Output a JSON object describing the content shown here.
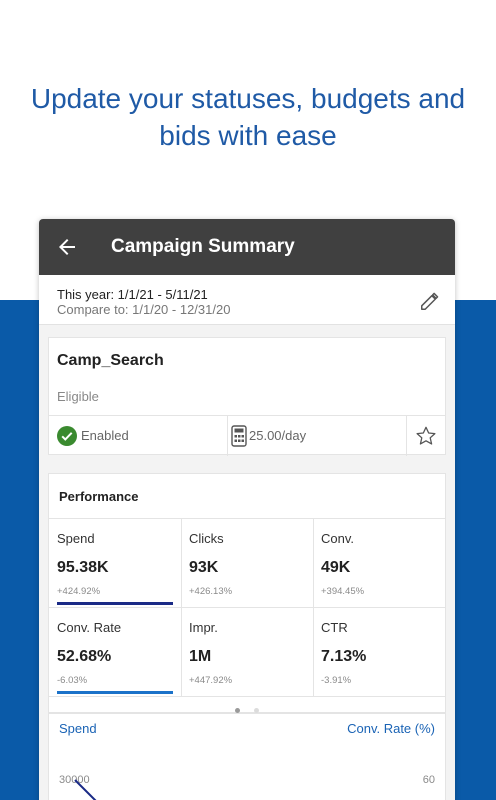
{
  "headline": {
    "line1": "Update your statuses, budgets and",
    "line2": "bids with ease"
  },
  "appbar": {
    "title": "Campaign Summary",
    "back_icon": "back-arrow-icon"
  },
  "date_range": {
    "this_year": "This year: 1/1/21 - 5/11/21",
    "compare_to": "Compare to: 1/1/20 -  12/31/20",
    "edit_icon": "pencil-icon"
  },
  "campaign": {
    "name": "Camp_Search",
    "status_text": "Eligible",
    "state": "Enabled",
    "budget": "25.00/day",
    "status_icon": "check-circle-icon",
    "budget_icon": "calculator-icon",
    "favorite_icon": "star-outline-icon"
  },
  "performance": {
    "title": "Performance",
    "metrics": [
      {
        "label": "Spend",
        "value": "95.38K",
        "change": "+424.92%",
        "bar_color": "#1a2a86",
        "selected": true
      },
      {
        "label": "Clicks",
        "value": "93K",
        "change": "+426.13%",
        "selected": false
      },
      {
        "label": "Conv.",
        "value": "49K",
        "change": "+394.45%",
        "selected": false
      },
      {
        "label": "Conv. Rate",
        "value": "52.68%",
        "change": "-6.03%",
        "bar_color": "#1b72c9",
        "selected": true
      },
      {
        "label": "Impr.",
        "value": "1M",
        "change": "+447.92%",
        "selected": false
      },
      {
        "label": "CTR",
        "value": "7.13%",
        "change": "-3.91%",
        "selected": false
      }
    ],
    "pages": 2,
    "active_page": 1
  },
  "trend_chart": {
    "left_series_label": "Spend",
    "right_series_label": "Conv. Rate (%)",
    "left_axis_tick": "30000",
    "right_axis_tick": "60"
  },
  "colors": {
    "brand_blue": "#0a5aa8",
    "headline_blue": "#1f5aa6",
    "appbar_bg": "#404040",
    "spend_series": "#1a2a86",
    "conv_rate_series": "#1b72c9",
    "enabled_green": "#3a8a2f"
  }
}
